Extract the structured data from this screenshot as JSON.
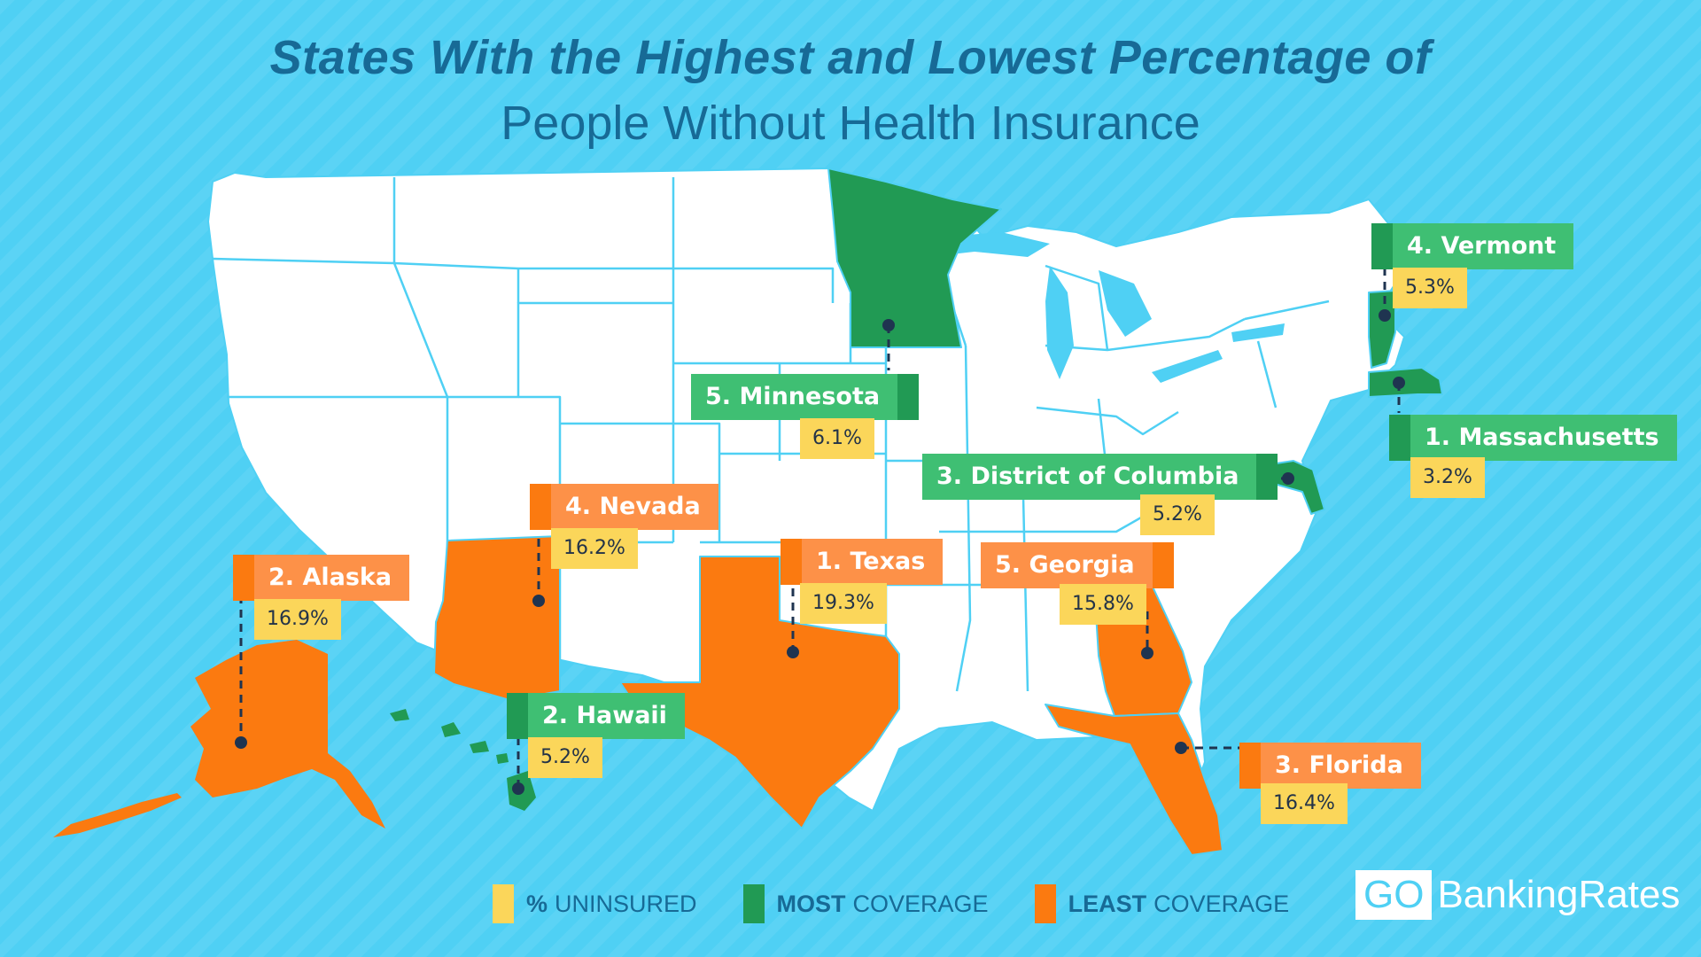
{
  "title": {
    "line1": "States With the Highest and Lowest Percentage of",
    "line2": "People Without Health Insurance"
  },
  "colors": {
    "background": "#4fd0f4",
    "state_fill": "#ffffff",
    "state_border": "#4fd0f4",
    "most_coverage": "#219a54",
    "most_coverage_label": "#3fbf73",
    "least_coverage": "#fb7a10",
    "least_coverage_label": "#fd9148",
    "uninsured": "#fbd65a",
    "title": "#176a96"
  },
  "callouts": [
    {
      "id": "massachusetts",
      "rank_label": "1. Massachusetts",
      "uninsured": "3.2%",
      "group": "most"
    },
    {
      "id": "hawaii",
      "rank_label": "2. Hawaii",
      "uninsured": "5.2%",
      "group": "most"
    },
    {
      "id": "dc",
      "rank_label": "3. District of Columbia",
      "uninsured": "5.2%",
      "group": "most"
    },
    {
      "id": "vermont",
      "rank_label": "4. Vermont",
      "uninsured": "5.3%",
      "group": "most"
    },
    {
      "id": "minnesota",
      "rank_label": "5. Minnesota",
      "uninsured": "6.1%",
      "group": "most"
    },
    {
      "id": "texas",
      "rank_label": "1. Texas",
      "uninsured": "19.3%",
      "group": "least"
    },
    {
      "id": "alaska",
      "rank_label": "2. Alaska",
      "uninsured": "16.9%",
      "group": "least"
    },
    {
      "id": "florida",
      "rank_label": "3. Florida",
      "uninsured": "16.4%",
      "group": "least"
    },
    {
      "id": "nevada",
      "rank_label": "4. Nevada",
      "uninsured": "16.2%",
      "group": "least"
    },
    {
      "id": "georgia",
      "rank_label": "5. Georgia",
      "uninsured": "15.8%",
      "group": "least"
    }
  ],
  "legend": {
    "uninsured": {
      "bold": "%",
      "text": "UNINSURED"
    },
    "most": {
      "bold": "MOST",
      "text": "COVERAGE"
    },
    "least": {
      "bold": "LEAST",
      "text": "COVERAGE"
    }
  },
  "logo": {
    "go": "GO",
    "rest": "BankingRates"
  }
}
